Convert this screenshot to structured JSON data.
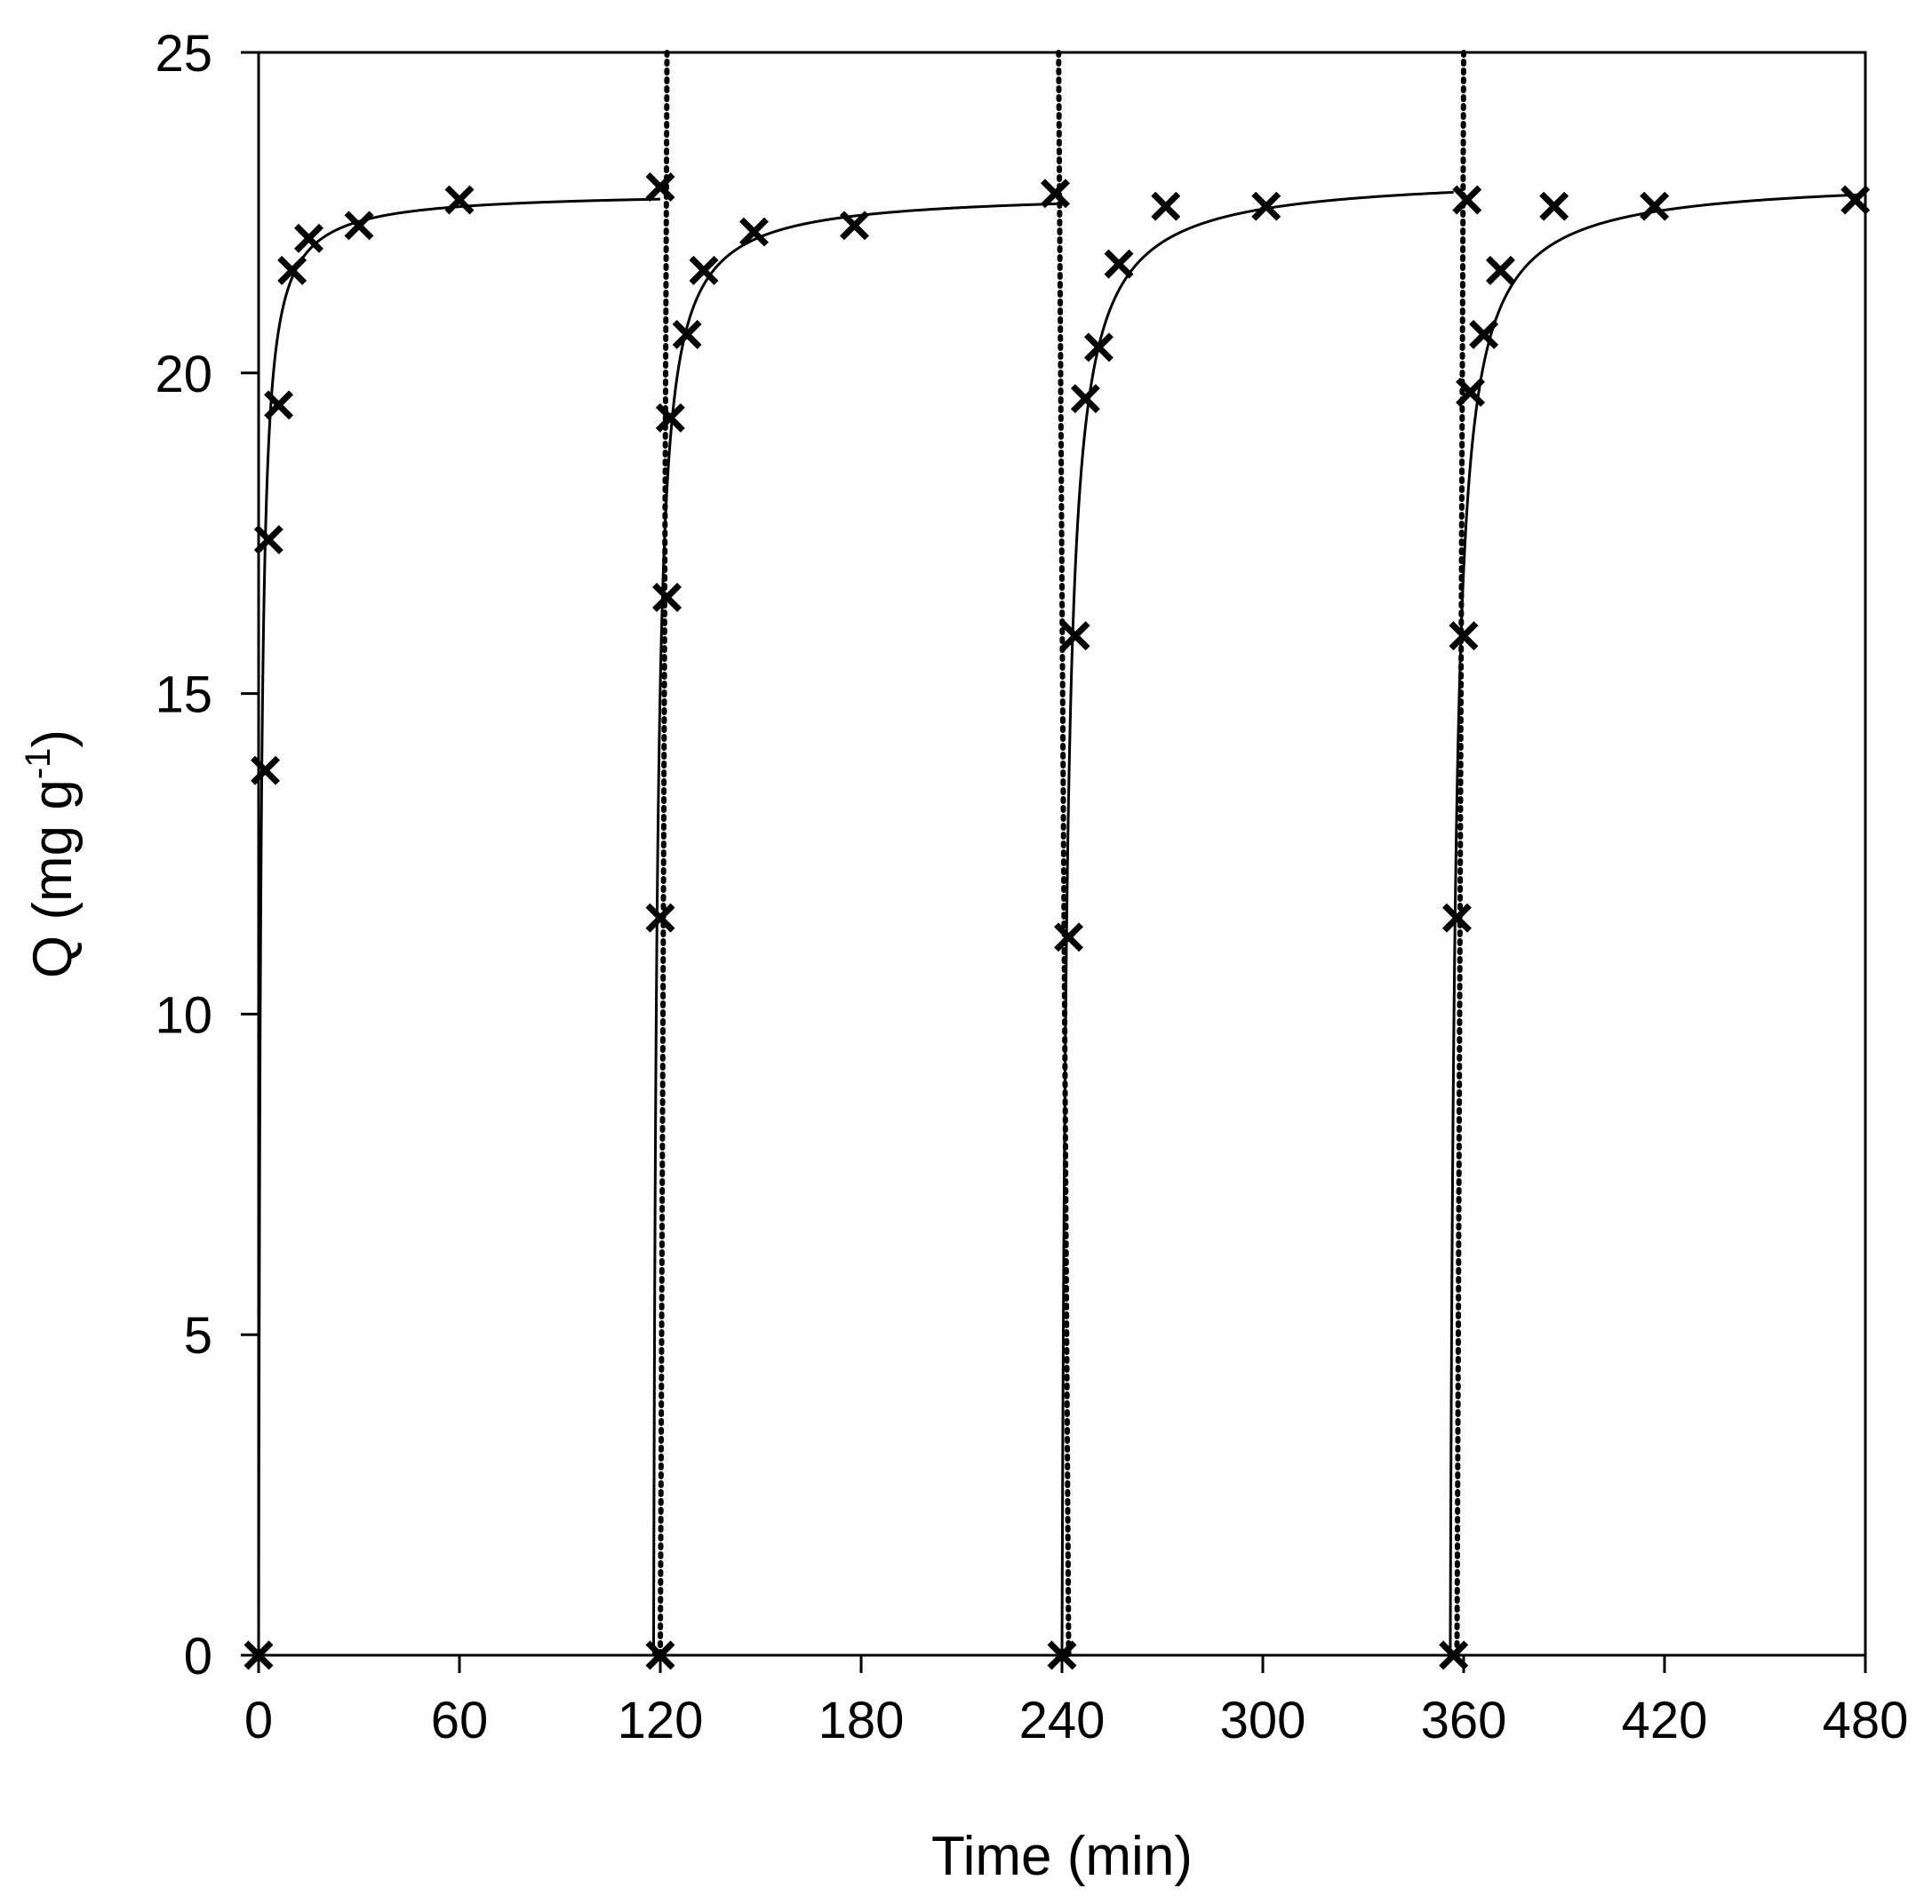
{
  "chart_data": {
    "type": "scatter",
    "title": "",
    "xlabel": "Time (min)",
    "ylabel": {
      "base": "Q (mg g",
      "sup": "-1",
      "close": ")"
    },
    "xlim": [
      0,
      480
    ],
    "ylim": [
      0,
      25
    ],
    "xticks": [
      "0",
      "60",
      "120",
      "180",
      "240",
      "300",
      "360",
      "420",
      "480"
    ],
    "yticks": [
      "0",
      "5",
      "10",
      "15",
      "20",
      "25"
    ],
    "grid": false,
    "legend": "none",
    "series": [
      {
        "role": "markers",
        "marker": "x",
        "color": "#000000",
        "points": [
          [
            0,
            0
          ],
          [
            2,
            13.8
          ],
          [
            3,
            17.4
          ],
          [
            6,
            19.5
          ],
          [
            10,
            21.6
          ],
          [
            15,
            22.1
          ],
          [
            30,
            22.3
          ],
          [
            60,
            22.7
          ],
          [
            120,
            22.9
          ],
          [
            120,
            0
          ],
          [
            120,
            11.5
          ],
          [
            122,
            16.5
          ],
          [
            123,
            19.3
          ],
          [
            128,
            20.6
          ],
          [
            133,
            21.6
          ],
          [
            148,
            22.2
          ],
          [
            178,
            22.3
          ],
          [
            238,
            22.8
          ],
          [
            240,
            0
          ],
          [
            242,
            11.2
          ],
          [
            244,
            15.9
          ],
          [
            247,
            19.6
          ],
          [
            251,
            20.4
          ],
          [
            257,
            21.7
          ],
          [
            271,
            22.6
          ],
          [
            301,
            22.6
          ],
          [
            357,
            0
          ],
          [
            358,
            11.5
          ],
          [
            360,
            15.9
          ],
          [
            361,
            22.7
          ],
          [
            362,
            19.7
          ],
          [
            366,
            20.6
          ],
          [
            371,
            21.6
          ],
          [
            387,
            22.6
          ],
          [
            417,
            22.6
          ],
          [
            477,
            22.7
          ]
        ]
      }
    ],
    "fit_curves": [
      {
        "line": "solid",
        "color": "#000000",
        "t0": 0,
        "t1": 120,
        "qe": 22.83,
        "k": 0.07
      },
      {
        "line": "solid",
        "color": "#000000",
        "t0": 118,
        "t1": 240,
        "qe": 22.83,
        "k": 0.043
      },
      {
        "line": "solid",
        "color": "#000000",
        "t0": 240,
        "t1": 357,
        "qe": 23.1,
        "k": 0.03
      },
      {
        "line": "solid",
        "color": "#000000",
        "t0": 356,
        "t1": 480,
        "qe": 23.05,
        "k": 0.03
      }
    ],
    "cycle_lines": [
      {
        "line": "dotted",
        "color": "#000000",
        "x_top": 122,
        "x_bottom": 120
      },
      {
        "line": "dotted",
        "color": "#000000",
        "x_top": 239,
        "x_bottom": 242
      },
      {
        "line": "dotted",
        "color": "#000000",
        "x_top": 360,
        "x_bottom": 358
      }
    ]
  }
}
